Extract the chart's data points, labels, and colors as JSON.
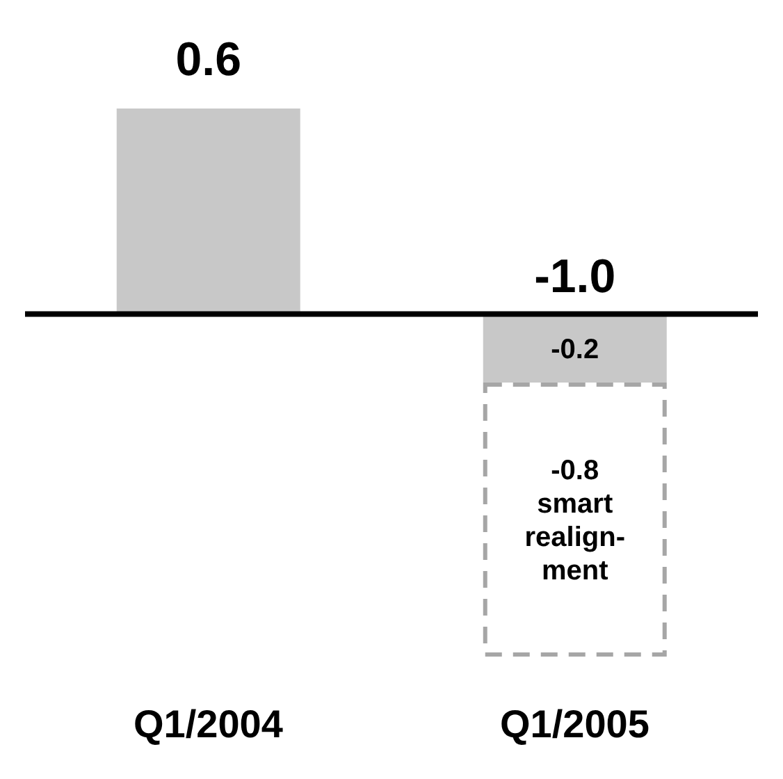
{
  "chart_data": {
    "type": "bar",
    "stacked": true,
    "categories": [
      "Q1/2004",
      "Q1/2005"
    ],
    "series": [
      {
        "color": "#c8c8c8",
        "values": [
          0.6,
          -0.2
        ],
        "value_labels": [
          "0.6",
          "-0.2"
        ]
      },
      {
        "color": "#a6a6a6",
        "line_style": "dashed",
        "values": [
          null,
          -0.8
        ],
        "value_labels": [
          null,
          "-0.8"
        ]
      }
    ],
    "totals": [
      null,
      "-1.0"
    ],
    "annotations": [
      "smart realign-ment"
    ],
    "grid": false,
    "legend": false,
    "tick_labels": "x"
  }
}
